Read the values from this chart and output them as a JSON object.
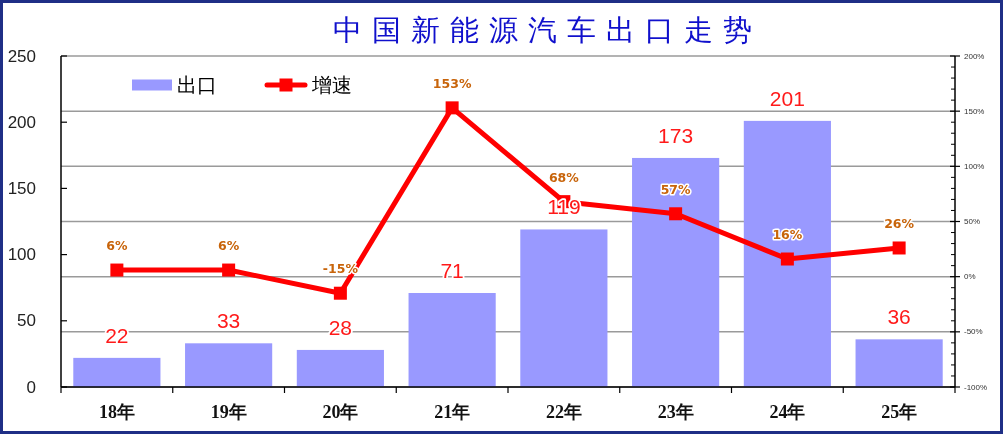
{
  "chart_data": {
    "type": "bar",
    "title": "中国新能源汽车出口走势",
    "categories": [
      "18年",
      "19年",
      "20年",
      "21年",
      "22年",
      "23年",
      "24年",
      "25年"
    ],
    "series": [
      {
        "name": "出口",
        "color": "#9999ff",
        "values": [
          22,
          33,
          28,
          71,
          119,
          173,
          201,
          36
        ]
      },
      {
        "name": "增速",
        "type": "line",
        "axis": "y2",
        "color": "#ff0000",
        "marker": "square",
        "values": [
          6,
          6,
          -15,
          153,
          68,
          57,
          16,
          26
        ],
        "value_labels": [
          "6%",
          "6%",
          "-15%",
          "153%",
          "68%",
          "57%",
          "16%",
          "26%"
        ]
      }
    ],
    "ylim": [
      0,
      250
    ],
    "yticks": [
      0,
      50,
      100,
      150,
      200,
      250
    ],
    "y2lim": [
      -100,
      200
    ],
    "y2ticks": [
      {
        "value": -100,
        "label": "-100%"
      },
      {
        "value": -90,
        "label": null
      },
      {
        "value": -80,
        "label": null
      },
      {
        "value": -70,
        "label": null
      },
      {
        "value": -60,
        "label": null
      },
      {
        "value": -50,
        "label": "-50%"
      },
      {
        "value": -40,
        "label": null
      },
      {
        "value": -30,
        "label": null
      },
      {
        "value": -20,
        "label": null
      },
      {
        "value": -10,
        "label": null
      },
      {
        "value": 0,
        "label": "0%"
      },
      {
        "value": 10,
        "label": null
      },
      {
        "value": 20,
        "label": null
      },
      {
        "value": 30,
        "label": null
      },
      {
        "value": 40,
        "label": null
      },
      {
        "value": 50,
        "label": "50%"
      },
      {
        "value": 60,
        "label": null
      },
      {
        "value": 70,
        "label": null
      },
      {
        "value": 80,
        "label": null
      },
      {
        "value": 90,
        "label": null
      },
      {
        "value": 100,
        "label": "100%"
      },
      {
        "value": 110,
        "label": null
      },
      {
        "value": 120,
        "label": null
      },
      {
        "value": 130,
        "label": null
      },
      {
        "value": 140,
        "label": null
      },
      {
        "value": 150,
        "label": "150%"
      },
      {
        "value": 160,
        "label": null
      },
      {
        "value": 170,
        "label": null
      },
      {
        "value": 180,
        "label": null
      },
      {
        "value": 190,
        "label": null
      },
      {
        "value": 200,
        "label": "200%"
      }
    ],
    "data_labels": true,
    "grid": "y2",
    "legend": "top left"
  }
}
